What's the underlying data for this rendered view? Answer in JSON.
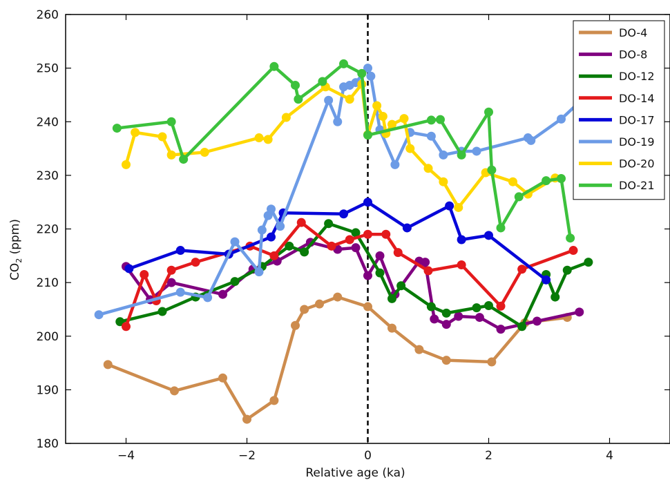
{
  "chart_data": {
    "type": "line",
    "title": "",
    "xlabel": "Relative age (ka)",
    "ylabel_main": "CO",
    "ylabel_sub": "2",
    "ylabel_rest": " (ppm)",
    "xlim": [
      -5,
      5
    ],
    "ylim": [
      180,
      260
    ],
    "xticks": [
      -4,
      -2,
      0,
      2,
      4
    ],
    "xtick_labels": [
      "−4",
      "−2",
      "0",
      "2",
      "4"
    ],
    "yticks": [
      180,
      190,
      200,
      210,
      220,
      230,
      240,
      250,
      260
    ],
    "ytick_labels": [
      "180",
      "190",
      "200",
      "210",
      "220",
      "230",
      "240",
      "250",
      "260"
    ],
    "vline_x": 0,
    "legend_position": "top-right",
    "grid": false,
    "series": [
      {
        "name": "DO-4",
        "color": "#cd8c4e",
        "x": [
          -4.3,
          -3.2,
          -2.4,
          -2.0,
          -1.55,
          -1.2,
          -1.05,
          -0.8,
          -0.5,
          0.0,
          0.4,
          0.85,
          1.3,
          2.05,
          2.6,
          3.3
        ],
        "y": [
          194.7,
          189.8,
          192.2,
          184.5,
          188.0,
          202.0,
          205.0,
          206.0,
          207.3,
          205.5,
          201.5,
          197.5,
          195.5,
          195.2,
          202.5,
          203.5
        ]
      },
      {
        "name": "DO-8",
        "color": "#800080",
        "x": [
          -4.0,
          -3.6,
          -3.25,
          -2.4,
          -1.9,
          -1.5,
          -0.95,
          -0.5,
          -0.2,
          0.0,
          0.2,
          0.45,
          0.85,
          0.95,
          1.1,
          1.3,
          1.5,
          1.85,
          2.2,
          2.8,
          3.5
        ],
        "y": [
          213.0,
          206.8,
          210.0,
          207.8,
          212.5,
          214.0,
          217.5,
          216.2,
          216.5,
          211.3,
          215.0,
          207.8,
          214.0,
          213.8,
          203.2,
          202.2,
          203.7,
          203.5,
          201.3,
          202.8,
          204.5
        ]
      },
      {
        "name": "DO-12",
        "color": "#087b08",
        "x": [
          -4.1,
          -3.4,
          -2.85,
          -2.2,
          -1.75,
          -1.3,
          -1.05,
          -0.65,
          -0.2,
          0.2,
          0.4,
          0.55,
          1.05,
          1.3,
          1.8,
          2.0,
          2.55,
          2.95,
          3.1,
          3.3,
          3.65
        ],
        "y": [
          202.7,
          204.6,
          207.3,
          210.2,
          213.0,
          216.8,
          215.7,
          221.0,
          219.3,
          211.8,
          207.0,
          209.4,
          205.5,
          204.3,
          205.3,
          205.7,
          201.8,
          211.5,
          207.3,
          212.3,
          213.8
        ]
      },
      {
        "name": "DO-14",
        "color": "#e41a1c",
        "x": [
          -4.0,
          -3.7,
          -3.5,
          -3.25,
          -2.85,
          -1.95,
          -1.55,
          -1.1,
          -0.6,
          -0.3,
          0.0,
          0.3,
          0.5,
          1.0,
          1.55,
          2.2,
          2.55,
          3.4
        ],
        "y": [
          201.8,
          211.5,
          206.6,
          212.3,
          213.8,
          216.8,
          215.0,
          221.2,
          216.8,
          218.0,
          219.0,
          219.0,
          215.6,
          212.2,
          213.3,
          205.6,
          212.5,
          216.0
        ]
      },
      {
        "name": "DO-17",
        "color": "#0707d9",
        "x": [
          -3.95,
          -3.1,
          -2.3,
          -1.6,
          -1.4,
          -0.4,
          0.0,
          0.65,
          1.35,
          1.55,
          2.0,
          2.95
        ],
        "y": [
          212.6,
          216.0,
          215.3,
          218.5,
          223.0,
          222.8,
          225.0,
          220.2,
          224.3,
          218.0,
          218.8,
          210.5
        ]
      },
      {
        "name": "DO-19",
        "color": "#6c9be6",
        "x": [
          -4.45,
          -3.1,
          -2.65,
          -2.2,
          -1.8,
          -1.75,
          -1.65,
          -1.6,
          -1.45,
          -0.65,
          -0.5,
          -0.4,
          -0.3,
          -0.2,
          0.0,
          0.05,
          0.2,
          0.45,
          0.7,
          1.05,
          1.25,
          1.55,
          1.8,
          2.65,
          2.7,
          3.2,
          3.8
        ],
        "y": [
          204.0,
          208.2,
          207.2,
          217.6,
          212.0,
          219.8,
          222.5,
          223.7,
          220.5,
          244.0,
          240.0,
          246.5,
          246.8,
          247.3,
          250.0,
          248.5,
          238.5,
          232.0,
          238.0,
          237.3,
          233.8,
          234.5,
          234.5,
          237.0,
          236.5,
          240.5,
          246.8
        ]
      },
      {
        "name": "DO-20",
        "color": "#ffd700",
        "x": [
          -4.0,
          -3.85,
          -3.4,
          -3.25,
          -2.7,
          -1.8,
          -1.65,
          -1.35,
          -0.7,
          -0.3,
          -0.1,
          0.0,
          0.15,
          0.25,
          0.3,
          0.4,
          0.6,
          0.7,
          1.0,
          1.25,
          1.5,
          1.95,
          2.4,
          2.65,
          3.1
        ],
        "y": [
          232.0,
          238.0,
          237.2,
          233.8,
          234.3,
          237.0,
          236.7,
          240.8,
          246.5,
          244.2,
          247.0,
          237.6,
          243.0,
          241.0,
          237.8,
          239.5,
          240.6,
          235.0,
          231.3,
          228.8,
          224.0,
          230.5,
          228.8,
          226.5,
          229.5
        ]
      },
      {
        "name": "DO-21",
        "color": "#3cc13c",
        "x": [
          -4.15,
          -3.25,
          -3.05,
          -1.55,
          -1.2,
          -1.15,
          -0.75,
          -0.4,
          -0.1,
          0.0,
          1.05,
          1.2,
          1.55,
          2.0,
          2.05,
          2.2,
          2.5,
          2.95,
          3.2,
          3.35
        ],
        "y": [
          238.8,
          240.0,
          233.0,
          250.3,
          246.8,
          244.2,
          247.5,
          250.8,
          249.0,
          237.5,
          240.3,
          240.4,
          233.8,
          241.8,
          231.0,
          220.2,
          226.0,
          229.0,
          229.4,
          218.3
        ]
      }
    ]
  }
}
